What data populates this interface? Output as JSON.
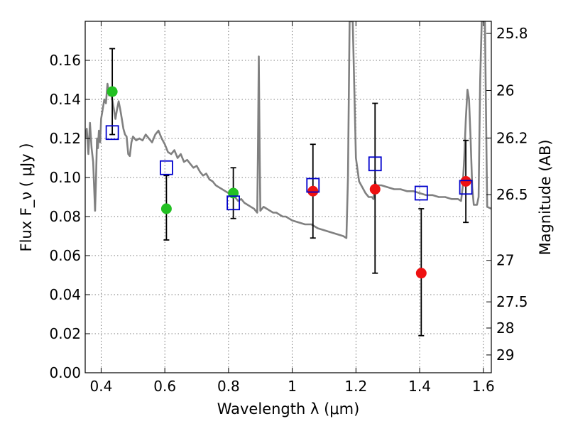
{
  "chart_data": {
    "type": "scatter",
    "xlabel": "Wavelength  λ (μm)",
    "ylabel": "Flux  F_ν  ( μJy )",
    "ylabel_right": "Magnitude (AB)",
    "xlim": [
      0.35,
      1.625
    ],
    "ylim": [
      0.0,
      0.18
    ],
    "grid": true,
    "x_ticks": [
      {
        "value": 0.4,
        "label": "0.4"
      },
      {
        "value": 0.6,
        "label": "0.6"
      },
      {
        "value": 0.8,
        "label": "0.8"
      },
      {
        "value": 1.0,
        "label": "1"
      },
      {
        "value": 1.2,
        "label": "1.2"
      },
      {
        "value": 1.4,
        "label": "1.4"
      },
      {
        "value": 1.6,
        "label": "1.6"
      }
    ],
    "y_ticks": [
      {
        "value": 0.0,
        "label": "0.00"
      },
      {
        "value": 0.02,
        "label": "0.02"
      },
      {
        "value": 0.04,
        "label": "0.04"
      },
      {
        "value": 0.06,
        "label": "0.06"
      },
      {
        "value": 0.08,
        "label": "0.08"
      },
      {
        "value": 0.1,
        "label": "0.10"
      },
      {
        "value": 0.12,
        "label": "0.12"
      },
      {
        "value": 0.14,
        "label": "0.14"
      },
      {
        "value": 0.16,
        "label": "0.16"
      }
    ],
    "right_ticks": [
      {
        "mag": 25.8,
        "label": "25.8"
      },
      {
        "mag": 26.0,
        "label": "26"
      },
      {
        "mag": 26.2,
        "label": "26.2"
      },
      {
        "mag": 26.5,
        "label": "26.5"
      },
      {
        "mag": 27.0,
        "label": "27"
      },
      {
        "mag": 27.5,
        "label": "27.5"
      },
      {
        "mag": 28.0,
        "label": "28"
      },
      {
        "mag": 29.0,
        "label": "29"
      }
    ],
    "colors": {
      "model": "#808080",
      "green": "#22c022",
      "red": "#ee1111",
      "box": "#0000cc",
      "errorbar": "#000000",
      "grid": "#555555"
    },
    "model_spectrum": [
      [
        0.35,
        0.12
      ],
      [
        0.355,
        0.125
      ],
      [
        0.36,
        0.112
      ],
      [
        0.365,
        0.128
      ],
      [
        0.37,
        0.115
      ],
      [
        0.375,
        0.108
      ],
      [
        0.378,
        0.095
      ],
      [
        0.381,
        0.083
      ],
      [
        0.384,
        0.1
      ],
      [
        0.387,
        0.12
      ],
      [
        0.39,
        0.115
      ],
      [
        0.393,
        0.124
      ],
      [
        0.397,
        0.118
      ],
      [
        0.4,
        0.13
      ],
      [
        0.405,
        0.135
      ],
      [
        0.41,
        0.14
      ],
      [
        0.415,
        0.138
      ],
      [
        0.42,
        0.148
      ],
      [
        0.425,
        0.142
      ],
      [
        0.43,
        0.145
      ],
      [
        0.435,
        0.14
      ],
      [
        0.44,
        0.135
      ],
      [
        0.445,
        0.13
      ],
      [
        0.45,
        0.135
      ],
      [
        0.455,
        0.139
      ],
      [
        0.46,
        0.135
      ],
      [
        0.465,
        0.13
      ],
      [
        0.47,
        0.125
      ],
      [
        0.475,
        0.122
      ],
      [
        0.48,
        0.121
      ],
      [
        0.485,
        0.112
      ],
      [
        0.49,
        0.111
      ],
      [
        0.495,
        0.118
      ],
      [
        0.5,
        0.121
      ],
      [
        0.51,
        0.119
      ],
      [
        0.52,
        0.12
      ],
      [
        0.53,
        0.119
      ],
      [
        0.54,
        0.122
      ],
      [
        0.55,
        0.12
      ],
      [
        0.56,
        0.118
      ],
      [
        0.57,
        0.122
      ],
      [
        0.58,
        0.124
      ],
      [
        0.59,
        0.12
      ],
      [
        0.6,
        0.117
      ],
      [
        0.61,
        0.113
      ],
      [
        0.62,
        0.112
      ],
      [
        0.63,
        0.114
      ],
      [
        0.64,
        0.11
      ],
      [
        0.65,
        0.112
      ],
      [
        0.66,
        0.108
      ],
      [
        0.67,
        0.109
      ],
      [
        0.68,
        0.107
      ],
      [
        0.69,
        0.105
      ],
      [
        0.7,
        0.106
      ],
      [
        0.71,
        0.103
      ],
      [
        0.72,
        0.101
      ],
      [
        0.73,
        0.102
      ],
      [
        0.74,
        0.099
      ],
      [
        0.75,
        0.098
      ],
      [
        0.76,
        0.096
      ],
      [
        0.77,
        0.095
      ],
      [
        0.78,
        0.094
      ],
      [
        0.79,
        0.093
      ],
      [
        0.8,
        0.092
      ],
      [
        0.81,
        0.091
      ],
      [
        0.82,
        0.09
      ],
      [
        0.83,
        0.088
      ],
      [
        0.84,
        0.089
      ],
      [
        0.85,
        0.087
      ],
      [
        0.86,
        0.086
      ],
      [
        0.87,
        0.085
      ],
      [
        0.88,
        0.084
      ],
      [
        0.885,
        0.083
      ],
      [
        0.89,
        0.082
      ],
      [
        0.892,
        0.11
      ],
      [
        0.895,
        0.162
      ],
      [
        0.898,
        0.11
      ],
      [
        0.9,
        0.083
      ],
      [
        0.91,
        0.085
      ],
      [
        0.92,
        0.084
      ],
      [
        0.93,
        0.083
      ],
      [
        0.94,
        0.082
      ],
      [
        0.95,
        0.082
      ],
      [
        0.96,
        0.081
      ],
      [
        0.97,
        0.08
      ],
      [
        0.98,
        0.08
      ],
      [
        0.99,
        0.079
      ],
      [
        1.0,
        0.078
      ],
      [
        1.02,
        0.077
      ],
      [
        1.04,
        0.076
      ],
      [
        1.06,
        0.076
      ],
      [
        1.08,
        0.074
      ],
      [
        1.1,
        0.073
      ],
      [
        1.12,
        0.072
      ],
      [
        1.14,
        0.071
      ],
      [
        1.16,
        0.07
      ],
      [
        1.17,
        0.069
      ],
      [
        1.175,
        0.1
      ],
      [
        1.18,
        0.18
      ],
      [
        1.19,
        0.18
      ],
      [
        1.2,
        0.11
      ],
      [
        1.21,
        0.098
      ],
      [
        1.22,
        0.095
      ],
      [
        1.23,
        0.092
      ],
      [
        1.24,
        0.09
      ],
      [
        1.25,
        0.09
      ],
      [
        1.255,
        0.089
      ],
      [
        1.26,
        0.098
      ],
      [
        1.265,
        0.095
      ],
      [
        1.27,
        0.096
      ],
      [
        1.28,
        0.096
      ],
      [
        1.3,
        0.095
      ],
      [
        1.32,
        0.094
      ],
      [
        1.34,
        0.094
      ],
      [
        1.36,
        0.093
      ],
      [
        1.38,
        0.093
      ],
      [
        1.4,
        0.092
      ],
      [
        1.42,
        0.091
      ],
      [
        1.44,
        0.091
      ],
      [
        1.46,
        0.09
      ],
      [
        1.48,
        0.09
      ],
      [
        1.5,
        0.089
      ],
      [
        1.52,
        0.089
      ],
      [
        1.53,
        0.088
      ],
      [
        1.535,
        0.095
      ],
      [
        1.54,
        0.11
      ],
      [
        1.545,
        0.13
      ],
      [
        1.55,
        0.145
      ],
      [
        1.555,
        0.14
      ],
      [
        1.56,
        0.12
      ],
      [
        1.565,
        0.095
      ],
      [
        1.57,
        0.086
      ],
      [
        1.58,
        0.086
      ],
      [
        1.585,
        0.09
      ],
      [
        1.59,
        0.15
      ],
      [
        1.595,
        0.18
      ],
      [
        1.605,
        0.18
      ],
      [
        1.61,
        0.11
      ],
      [
        1.612,
        0.085
      ],
      [
        1.625,
        0.084
      ]
    ],
    "series": [
      {
        "marker": "circle",
        "color_key": "green",
        "points": [
          {
            "x": 0.435,
            "y": 0.144
          },
          {
            "x": 0.605,
            "y": 0.084
          },
          {
            "x": 0.815,
            "y": 0.092
          }
        ]
      },
      {
        "marker": "circle",
        "color_key": "red",
        "points": [
          {
            "x": 1.065,
            "y": 0.093
          },
          {
            "x": 1.26,
            "y": 0.094
          },
          {
            "x": 1.405,
            "y": 0.051
          },
          {
            "x": 1.545,
            "y": 0.098
          }
        ]
      },
      {
        "marker": "square",
        "color_key": "box",
        "points": [
          {
            "x": 0.435,
            "y": 0.123
          },
          {
            "x": 0.605,
            "y": 0.105
          },
          {
            "x": 0.815,
            "y": 0.087
          },
          {
            "x": 1.065,
            "y": 0.096
          },
          {
            "x": 1.26,
            "y": 0.107
          },
          {
            "x": 1.405,
            "y": 0.092
          },
          {
            "x": 1.545,
            "y": 0.095
          }
        ]
      }
    ],
    "errorbars": [
      {
        "x": 0.435,
        "low": 0.122,
        "high": 0.166
      },
      {
        "x": 0.605,
        "low": 0.068,
        "high": 0.101
      },
      {
        "x": 0.815,
        "low": 0.079,
        "high": 0.105
      },
      {
        "x": 1.065,
        "low": 0.069,
        "high": 0.117
      },
      {
        "x": 1.26,
        "low": 0.051,
        "high": 0.138
      },
      {
        "x": 1.405,
        "low": 0.019,
        "high": 0.084
      },
      {
        "x": 1.545,
        "low": 0.077,
        "high": 0.119
      }
    ]
  }
}
